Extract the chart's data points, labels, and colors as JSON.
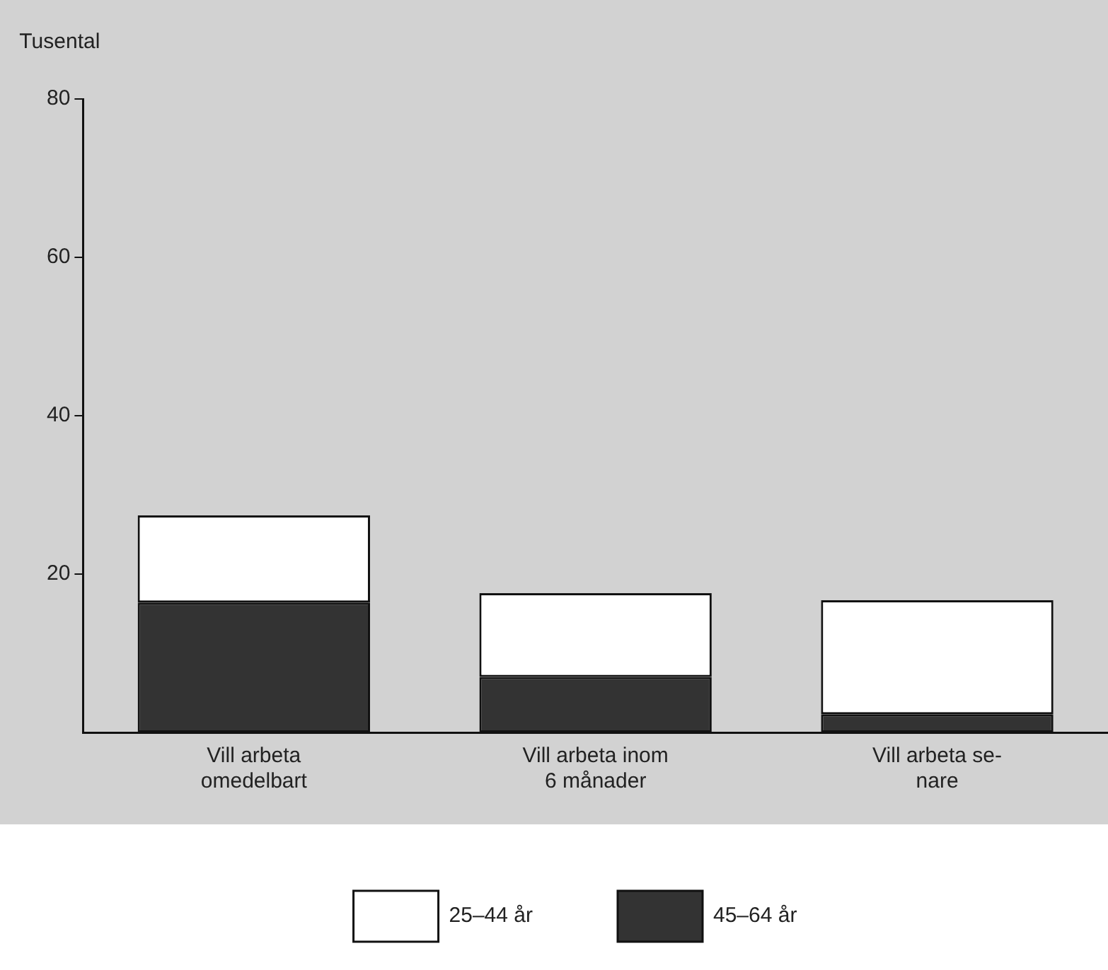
{
  "chart_data": {
    "type": "bar",
    "stacked": true,
    "ylabel": "Tusental",
    "categories": [
      "Vill arbeta\nomedelbart",
      "Vill arbeta inom\n6 månader",
      "Vill arbeta se-\nnare"
    ],
    "series": [
      {
        "name": "45–64 år",
        "color": "#333333",
        "values": [
          16.4,
          7.0,
          2.3
        ]
      },
      {
        "name": "25–44 år",
        "color": "#ffffff",
        "values": [
          11.0,
          10.6,
          14.4
        ]
      }
    ],
    "ylim": [
      0,
      80
    ],
    "yticks": [
      20,
      40,
      60,
      80
    ],
    "grid": false,
    "legend": "bottom"
  }
}
